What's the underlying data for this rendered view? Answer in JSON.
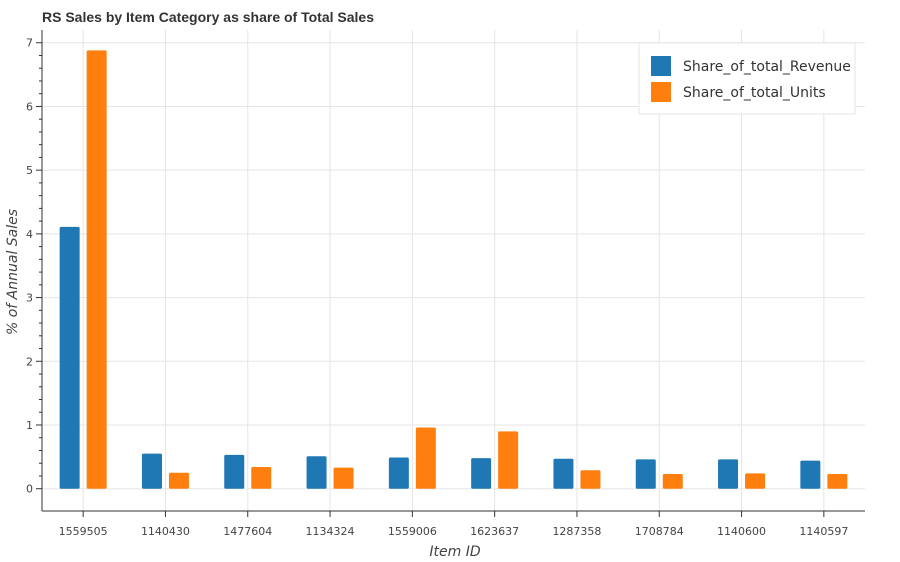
{
  "chart_data": {
    "type": "bar",
    "title": "RS Sales by Item Category as share of Total Sales",
    "xlabel": "Item ID",
    "ylabel": "% of Annual Sales",
    "categories": [
      "1559505",
      "1140430",
      "1477604",
      "1134324",
      "1559006",
      "1623637",
      "1287358",
      "1708784",
      "1140600",
      "1140597"
    ],
    "series": [
      {
        "name": "Share_of_total_Revenue",
        "color": "#1f77b4",
        "values": [
          4.11,
          0.55,
          0.53,
          0.51,
          0.49,
          0.48,
          0.47,
          0.46,
          0.46,
          0.44
        ]
      },
      {
        "name": "Share_of_total_Units",
        "color": "#ff7f0e",
        "values": [
          6.88,
          0.25,
          0.34,
          0.33,
          0.96,
          0.9,
          0.29,
          0.23,
          0.24,
          0.23
        ]
      }
    ],
    "ylim": [
      -0.35,
      7.2
    ],
    "yticks": [
      0,
      1,
      2,
      3,
      4,
      5,
      6,
      7
    ],
    "grid": true,
    "legend_position": "top-right"
  }
}
